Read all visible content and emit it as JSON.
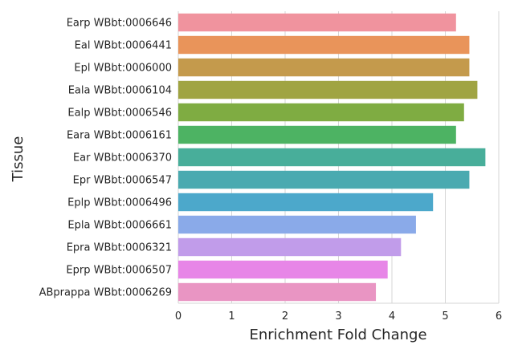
{
  "chart_data": {
    "type": "bar",
    "orientation": "horizontal",
    "xlabel": "Enrichment Fold Change",
    "ylabel": "Tissue",
    "xlim": [
      0,
      6
    ],
    "xticks": [
      "0",
      "1",
      "2",
      "3",
      "4",
      "5",
      "6"
    ],
    "grid": true,
    "categories": [
      "Earp WBbt:0006646",
      "Eal WBbt:0006441",
      "Epl WBbt:0006000",
      "Eala WBbt:0006104",
      "Ealp WBbt:0006546",
      "Eara WBbt:0006161",
      "Ear WBbt:0006370",
      "Epr WBbt:0006547",
      "Eplp WBbt:0006496",
      "Epla WBbt:0006661",
      "Epra WBbt:0006321",
      "Eprp WBbt:0006507",
      "ABprappa WBbt:0006269"
    ],
    "values": [
      5.2,
      5.45,
      5.45,
      5.6,
      5.35,
      5.2,
      5.75,
      5.45,
      4.77,
      4.45,
      4.17,
      3.92,
      3.7
    ],
    "colors": [
      "#f0939e",
      "#e9945a",
      "#c49a4c",
      "#a0a442",
      "#7fac42",
      "#4db363",
      "#48ae9a",
      "#4aaab0",
      "#4ca8cb",
      "#8aaae9",
      "#c19cea",
      "#e786e7",
      "#e995c3"
    ]
  }
}
